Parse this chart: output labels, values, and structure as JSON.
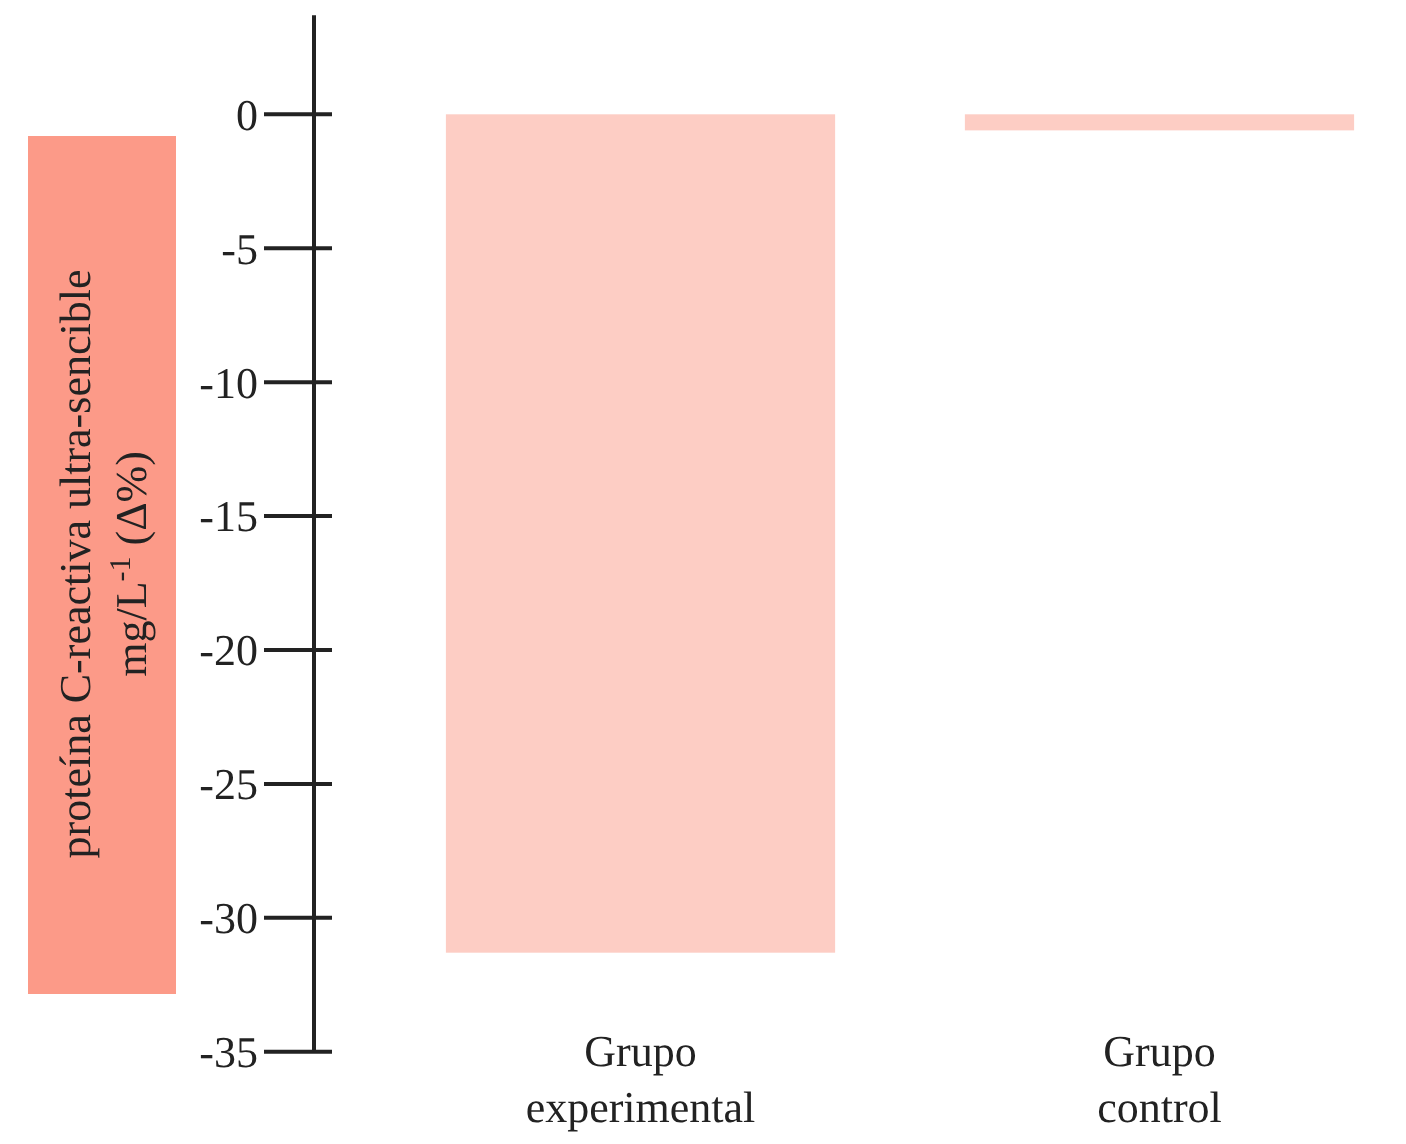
{
  "chart_data": {
    "type": "bar",
    "ylabel": "proteína C-reactiva ultra-sencible\nmg/L$^{-1}$ (Δ%)",
    "categories": [
      "Grupo experimental",
      "Grupo control"
    ],
    "values": [
      -31.3,
      -0.6
    ],
    "color": "#fdcdc4",
    "ylim": [
      -35,
      3.7
    ],
    "yticks": [
      0,
      -5,
      -10,
      -15,
      -20,
      -25,
      -30,
      -35
    ],
    "grid": false
  }
}
